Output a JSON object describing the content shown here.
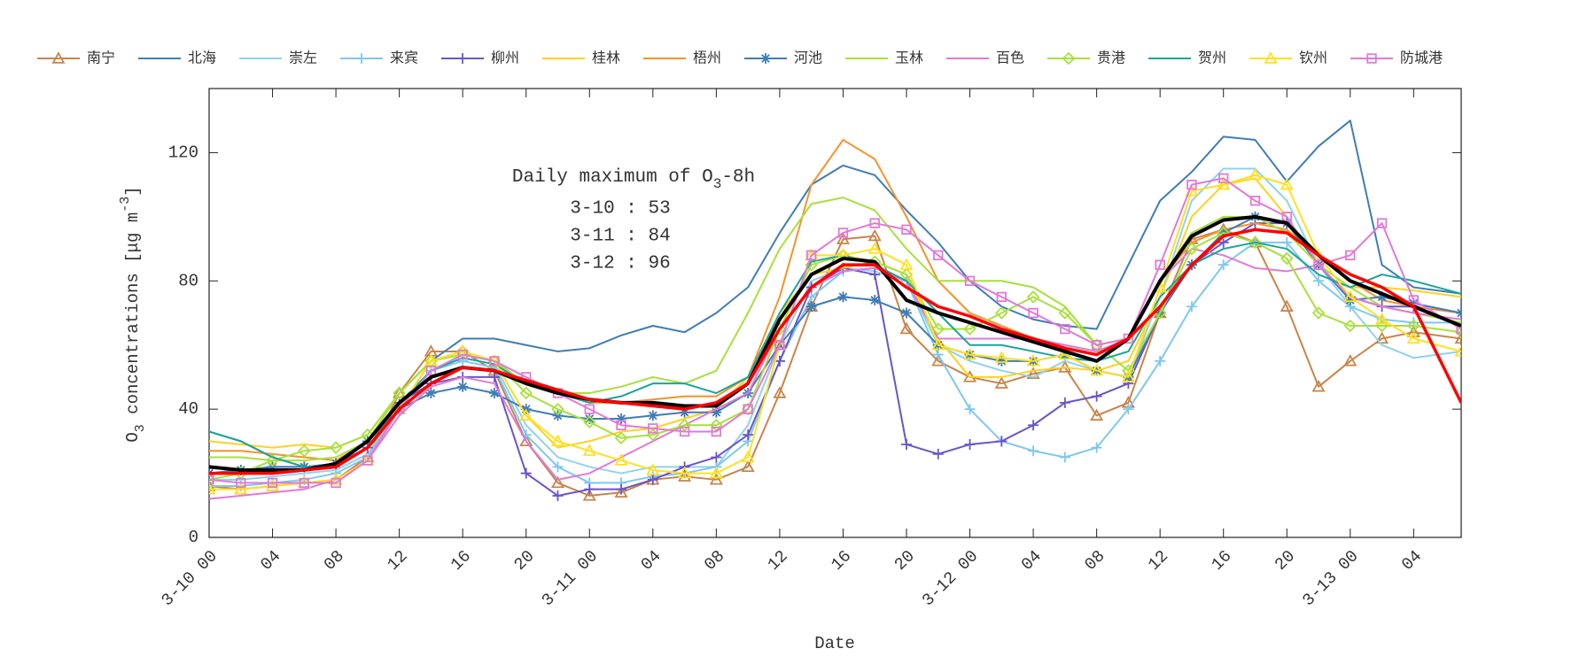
{
  "chart_data": {
    "type": "line",
    "xlabel": "Date",
    "ylabel_parts": [
      "O",
      "3",
      " concentrations [μg m",
      "-3",
      "]"
    ],
    "annotation": {
      "title_parts": [
        "Daily maximum of O",
        "3",
        "-8h"
      ],
      "lines": [
        "3-10 : 53",
        "3-11 : 84",
        "3-12 : 96"
      ]
    },
    "xlim": [
      0,
      79
    ],
    "ylim": [
      0,
      140
    ],
    "yticks": [
      0,
      40,
      80,
      120
    ],
    "xticks": [
      {
        "value": 0,
        "label": "3-10 00"
      },
      {
        "value": 4,
        "label": "04"
      },
      {
        "value": 8,
        "label": "08"
      },
      {
        "value": 12,
        "label": "12"
      },
      {
        "value": 16,
        "label": "16"
      },
      {
        "value": 20,
        "label": "20"
      },
      {
        "value": 24,
        "label": "3-11 00"
      },
      {
        "value": 28,
        "label": "04"
      },
      {
        "value": 32,
        "label": "08"
      },
      {
        "value": 36,
        "label": "12"
      },
      {
        "value": 40,
        "label": "16"
      },
      {
        "value": 44,
        "label": "20"
      },
      {
        "value": 48,
        "label": "3-12 00"
      },
      {
        "value": 52,
        "label": "04"
      },
      {
        "value": 56,
        "label": "08"
      },
      {
        "value": 60,
        "label": "12"
      },
      {
        "value": 64,
        "label": "16"
      },
      {
        "value": 68,
        "label": "20"
      },
      {
        "value": 72,
        "label": "3-13 00"
      },
      {
        "value": 76,
        "label": "04"
      }
    ],
    "x": [
      0,
      2,
      4,
      6,
      8,
      10,
      12,
      14,
      16,
      18,
      20,
      22,
      24,
      26,
      28,
      30,
      32,
      34,
      36,
      38,
      40,
      42,
      44,
      46,
      48,
      50,
      52,
      54,
      56,
      58,
      60,
      62,
      64,
      66,
      68,
      70,
      72,
      74,
      76,
      79
    ],
    "series": [
      {
        "name": "南宁",
        "color": "#c8854a",
        "marker": "triangle",
        "values": [
          16,
          15,
          16,
          17,
          18,
          25,
          45,
          58,
          58,
          52,
          30,
          17,
          13,
          14,
          18,
          19,
          18,
          22,
          45,
          72,
          93,
          94,
          65,
          55,
          50,
          48,
          51,
          53,
          38,
          42,
          70,
          93,
          96,
          92,
          72,
          47,
          55,
          62,
          64,
          62
        ]
      },
      {
        "name": "北海",
        "color": "#3f7db5",
        "marker": "none",
        "values": [
          33,
          30,
          25,
          22,
          22,
          28,
          40,
          55,
          62,
          62,
          60,
          58,
          59,
          63,
          66,
          64,
          70,
          78,
          95,
          110,
          116,
          113,
          102,
          92,
          80,
          72,
          68,
          66,
          65,
          85,
          105,
          114,
          125,
          124,
          111,
          122,
          130,
          85,
          78,
          76
        ]
      },
      {
        "name": "崇左",
        "color": "#8fd2f0",
        "marker": "none",
        "values": [
          18,
          18,
          19,
          20,
          21,
          26,
          40,
          52,
          56,
          54,
          35,
          25,
          22,
          20,
          22,
          22,
          22,
          35,
          60,
          80,
          84,
          83,
          80,
          60,
          55,
          52,
          50,
          55,
          52,
          50,
          75,
          105,
          115,
          115,
          105,
          85,
          72,
          60,
          56,
          58
        ]
      },
      {
        "name": "来宾",
        "color": "#7ec8f0",
        "marker": "plus",
        "values": [
          16,
          16,
          17,
          18,
          20,
          25,
          40,
          52,
          55,
          53,
          32,
          22,
          17,
          17,
          19,
          20,
          22,
          30,
          55,
          75,
          83,
          84,
          80,
          57,
          40,
          30,
          27,
          25,
          28,
          40,
          55,
          72,
          85,
          92,
          92,
          80,
          72,
          68,
          67,
          67
        ]
      },
      {
        "name": "柳州",
        "color": "#6a55c8",
        "marker": "plus",
        "values": [
          20,
          21,
          22,
          22,
          23,
          28,
          42,
          48,
          50,
          50,
          20,
          13,
          15,
          15,
          18,
          22,
          25,
          32,
          55,
          78,
          84,
          82,
          29,
          26,
          29,
          30,
          35,
          42,
          44,
          48,
          70,
          85,
          92,
          98,
          98,
          85,
          75,
          72,
          72,
          70
        ]
      },
      {
        "name": "桂林",
        "color": "#ffd21e",
        "marker": "none",
        "values": [
          30,
          29,
          28,
          29,
          28,
          32,
          45,
          55,
          58,
          55,
          38,
          28,
          30,
          33,
          34,
          37,
          40,
          50,
          70,
          82,
          84,
          86,
          82,
          62,
          50,
          50,
          52,
          53,
          52,
          55,
          75,
          100,
          110,
          112,
          100,
          85,
          78,
          78,
          77,
          75
        ]
      },
      {
        "name": "梧州",
        "color": "#f5922a",
        "marker": "none",
        "values": [
          27,
          27,
          26,
          25,
          24,
          30,
          45,
          55,
          58,
          55,
          48,
          45,
          42,
          42,
          43,
          44,
          44,
          50,
          75,
          110,
          124,
          118,
          100,
          80,
          70,
          66,
          62,
          60,
          58,
          62,
          80,
          92,
          96,
          98,
          96,
          88,
          80,
          74,
          72,
          70
        ]
      },
      {
        "name": "河池",
        "color": "#3f7db5",
        "marker": "asterisk",
        "values": [
          20,
          21,
          22,
          22,
          23,
          30,
          40,
          45,
          47,
          45,
          40,
          38,
          37,
          37,
          38,
          39,
          39,
          45,
          60,
          72,
          75,
          74,
          70,
          60,
          57,
          55,
          55,
          57,
          52,
          50,
          70,
          85,
          95,
          100,
          98,
          85,
          74,
          75,
          73,
          70
        ]
      },
      {
        "name": "玉林",
        "color": "#a8e03c",
        "marker": "none",
        "values": [
          25,
          25,
          24,
          24,
          25,
          30,
          45,
          55,
          57,
          55,
          48,
          45,
          45,
          47,
          50,
          48,
          52,
          70,
          90,
          104,
          106,
          102,
          90,
          80,
          80,
          80,
          78,
          72,
          60,
          62,
          80,
          95,
          100,
          100,
          95,
          85,
          78,
          72,
          70,
          67
        ]
      },
      {
        "name": "百色",
        "color": "#e07ad6",
        "marker": "none",
        "values": [
          12,
          13,
          14,
          15,
          18,
          24,
          38,
          47,
          50,
          48,
          30,
          18,
          20,
          25,
          30,
          35,
          40,
          45,
          65,
          78,
          83,
          84,
          80,
          62,
          62,
          62,
          62,
          60,
          58,
          62,
          80,
          90,
          88,
          84,
          83,
          85,
          75,
          72,
          70,
          68
        ]
      },
      {
        "name": "贵港",
        "color": "#a8e03c",
        "marker": "diamond",
        "values": [
          18,
          20,
          24,
          27,
          28,
          32,
          45,
          55,
          58,
          55,
          45,
          40,
          36,
          31,
          32,
          35,
          35,
          40,
          65,
          85,
          88,
          86,
          82,
          65,
          65,
          70,
          75,
          70,
          60,
          52,
          70,
          90,
          95,
          92,
          87,
          70,
          66,
          66,
          66,
          64
        ]
      },
      {
        "name": "贺州",
        "color": "#1aa59a",
        "marker": "none",
        "values": [
          33,
          30,
          25,
          22,
          22,
          28,
          42,
          52,
          56,
          54,
          48,
          45,
          42,
          44,
          48,
          48,
          45,
          50,
          70,
          86,
          88,
          85,
          80,
          70,
          60,
          60,
          58,
          56,
          55,
          58,
          75,
          85,
          90,
          92,
          90,
          82,
          78,
          82,
          80,
          76
        ]
      },
      {
        "name": "钦州",
        "color": "#ffe020",
        "marker": "triangle",
        "values": [
          15,
          15,
          16,
          17,
          18,
          24,
          40,
          55,
          58,
          55,
          38,
          30,
          27,
          24,
          21,
          20,
          20,
          25,
          60,
          88,
          88,
          90,
          85,
          60,
          57,
          56,
          55,
          57,
          52,
          50,
          78,
          108,
          110,
          113,
          110,
          88,
          75,
          68,
          62,
          58
        ]
      },
      {
        "name": "防城港",
        "color": "#e07ad6",
        "marker": "square",
        "values": [
          18,
          17,
          17,
          17,
          17,
          24,
          40,
          52,
          57,
          55,
          50,
          45,
          40,
          35,
          34,
          33,
          33,
          40,
          60,
          88,
          95,
          98,
          96,
          88,
          80,
          75,
          70,
          65,
          60,
          62,
          85,
          110,
          112,
          105,
          100,
          85,
          88,
          98,
          74,
          65
        ]
      },
      {
        "color": "#000000",
        "marker": "none",
        "width": 4,
        "values": [
          22,
          21,
          21,
          21,
          23,
          30,
          42,
          50,
          53,
          52,
          48,
          45,
          43,
          42,
          42,
          41,
          41,
          48,
          68,
          82,
          87,
          86,
          74,
          70,
          67,
          64,
          61,
          58,
          55,
          62,
          80,
          94,
          99,
          100,
          98,
          88,
          80,
          76,
          72,
          66
        ]
      },
      {
        "color": "#ff0000",
        "marker": "none",
        "width": 3.5,
        "values": [
          20,
          20,
          20,
          21,
          22,
          28,
          40,
          48,
          53,
          52,
          49,
          46,
          43,
          42,
          41,
          40,
          42,
          48,
          65,
          78,
          85,
          85,
          78,
          72,
          69,
          65,
          62,
          59,
          57,
          62,
          72,
          85,
          94,
          96,
          95,
          88,
          82,
          78,
          72,
          42
        ]
      }
    ]
  }
}
